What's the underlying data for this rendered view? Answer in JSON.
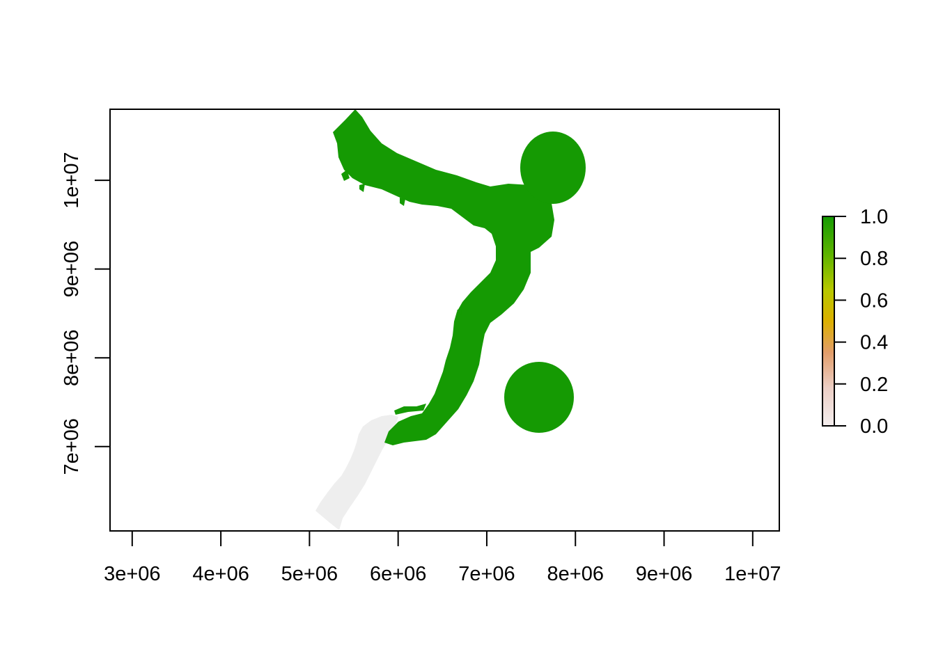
{
  "chart_data": {
    "type": "raster",
    "xlim": [
      2750000,
      10300000
    ],
    "ylim": [
      6050000,
      10800000
    ],
    "x_ticks": [
      3000000,
      4000000,
      5000000,
      6000000,
      7000000,
      8000000,
      9000000,
      10000000
    ],
    "x_tick_labels": [
      "3e+06",
      "4e+06",
      "5e+06",
      "6e+06",
      "7e+06",
      "8e+06",
      "9e+06",
      "1e+07"
    ],
    "y_ticks": [
      7000000,
      8000000,
      9000000,
      10000000
    ],
    "y_tick_labels": [
      "7e+06",
      "8e+06",
      "9e+06",
      "1e+07"
    ],
    "regions": [
      {
        "name": "",
        "value": 1.0,
        "color": "#159a03",
        "shape": "corridor-and-circles"
      },
      {
        "name": "",
        "value": 0.0,
        "color": "#eeeeee",
        "shape": "southern-strip"
      }
    ],
    "legend": {
      "position": "right",
      "range": [
        0,
        1
      ],
      "ticks": [
        0.0,
        0.2,
        0.4,
        0.6,
        0.8,
        1.0
      ],
      "tick_labels": [
        "0.0",
        "0.2",
        "0.4",
        "0.6",
        "0.8",
        "1.0"
      ],
      "colors": [
        "#f2f2f2",
        "#eac4b6",
        "#e09a70",
        "#d9b100",
        "#a6c800",
        "#55b000",
        "#159a03"
      ]
    },
    "grid": false,
    "title": "",
    "xlabel": "",
    "ylabel": ""
  }
}
